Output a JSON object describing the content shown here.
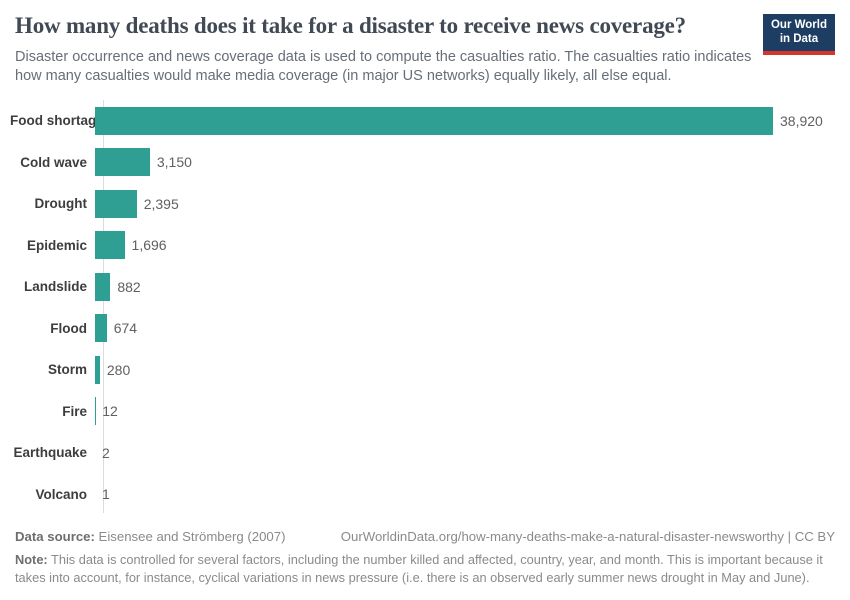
{
  "header": {
    "title": "How many deaths does it take for a disaster to receive news coverage?",
    "subtitle": "Disaster occurrence and news coverage data is used to compute the casualties ratio. The casualties ratio indicates how many casualties would make media coverage (in major US networks) equally likely, all else equal.",
    "logo": {
      "line1": "Our World",
      "line2": "in Data",
      "bg_color": "#1d3d63",
      "stripe_color": "#d6352b"
    }
  },
  "chart_data": {
    "type": "bar",
    "orientation": "horizontal",
    "title": "How many deaths does it take for a disaster to receive news coverage?",
    "categories": [
      "Food shortage",
      "Cold wave",
      "Drought",
      "Epidemic",
      "Landslide",
      "Flood",
      "Storm",
      "Fire",
      "Earthquake",
      "Volcano"
    ],
    "values": [
      38920,
      3150,
      2395,
      1696,
      882,
      674,
      280,
      12,
      2,
      1
    ],
    "value_labels": [
      "38,920",
      "3,150",
      "2,395",
      "1,696",
      "882",
      "674",
      "280",
      "12",
      "2",
      "1"
    ],
    "xlabel": "",
    "ylabel": "",
    "xlim": [
      0,
      38920
    ],
    "grid": false,
    "legend": false,
    "bar_color": "#2f9e93",
    "axis_color": "#dcdcdc"
  },
  "footer": {
    "datasource_label": "Data source:",
    "datasource_value": " Eisensee and Strömberg (2007)",
    "link": "OurWorldinData.org/how-many-deaths-make-a-natural-disaster-newsworthy | CC BY",
    "note_label": "Note:",
    "note_text": " This data is controlled for several factors, including the number killed and affected, country, year, and month. This is important because it takes into account, for instance, cyclical variations in news pressure (i.e. there is an observed early summer news drought in May and June)."
  }
}
